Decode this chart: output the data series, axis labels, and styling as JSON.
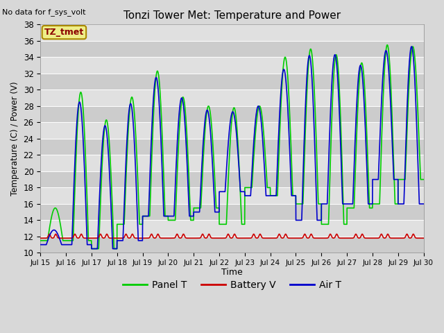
{
  "title": "Tonzi Tower Met: Temperature and Power",
  "xlabel": "Time",
  "ylabel": "Temperature (C) / Power (V)",
  "ylim": [
    10,
    38
  ],
  "xlim": [
    0,
    15
  ],
  "top_left_text": "No data for f_sys_volt",
  "annotation_label": "TZ_tmet",
  "bg_color": "#e8e8e8",
  "xtick_labels": [
    "Jul 15",
    "Jul 16",
    "Jul 17",
    "Jul 18",
    "Jul 19",
    "Jul 20",
    "Jul 21",
    "Jul 22",
    "Jul 23",
    "Jul 24",
    "Jul 25",
    "Jul 26",
    "Jul 27",
    "Jul 28",
    "Jul 29",
    "Jul 30"
  ],
  "ytick_values": [
    10,
    12,
    14,
    16,
    18,
    20,
    22,
    24,
    26,
    28,
    30,
    32,
    34,
    36,
    38
  ],
  "panel_color": "#00cc00",
  "battery_color": "#cc0000",
  "air_color": "#0000cc",
  "panel_linewidth": 1.2,
  "battery_linewidth": 1.2,
  "air_linewidth": 1.2,
  "legend_labels": [
    "Panel T",
    "Battery V",
    "Air T"
  ],
  "panel_peaks": [
    15.3,
    29.7,
    26.3,
    29.1,
    29.1,
    32.3,
    29.1,
    28.0,
    27.5,
    28.0,
    34.0,
    35.0,
    34.3,
    34.3,
    32.8,
    33.3,
    35.0,
    35.3,
    35.8,
    34.0,
    35.3,
    35.0,
    34.5
  ],
  "air_peaks": [
    12.8,
    28.5,
    25.6,
    28.3,
    31.0,
    31.5,
    29.0,
    27.5,
    27.3,
    28.0,
    32.5,
    34.0,
    34.2,
    34.3,
    32.6,
    33.0,
    34.5,
    34.8,
    35.3,
    34.8,
    35.0,
    34.8,
    22.2
  ],
  "panel_mins": [
    11.5,
    11.5,
    10.5,
    12.0,
    14.0,
    14.5,
    13.5,
    15.5,
    13.5,
    18.0,
    17.0,
    16.0,
    16.0,
    13.5,
    16.0,
    15.5,
    16.0,
    18.5,
    15.5
  ],
  "air_mins": [
    11.0,
    11.0,
    10.5,
    11.5,
    14.5,
    14.0,
    15.0,
    15.0,
    18.0,
    17.5,
    17.0,
    17.0,
    14.0,
    16.0,
    16.0,
    16.0,
    19.0,
    15.5,
    16.0
  ]
}
